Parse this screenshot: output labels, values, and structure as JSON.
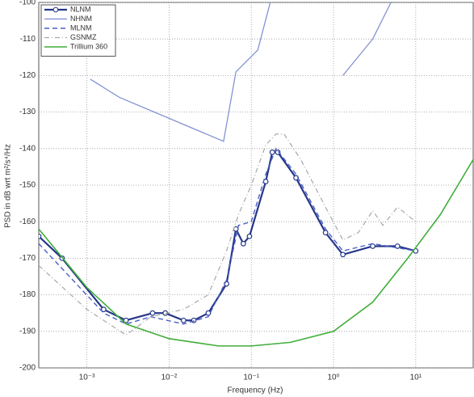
{
  "chart_data": {
    "type": "line",
    "xlabel": "Frequency (Hz)",
    "ylabel": "PSD in dB wrt m²/s⁴/Hz",
    "xscale": "log",
    "grid": true,
    "legend": "upper left",
    "xlim": [
      0.00026,
      50
    ],
    "ylim": [
      -200,
      -100
    ],
    "xticks": [
      {
        "value": 0.001,
        "label": "10⁻³"
      },
      {
        "value": 0.01,
        "label": "10⁻²"
      },
      {
        "value": 0.1,
        "label": "10⁻¹"
      },
      {
        "value": 1,
        "label": "10⁰"
      },
      {
        "value": 10,
        "label": "10¹"
      }
    ],
    "yticks": [
      -100,
      -110,
      -120,
      -130,
      -140,
      -150,
      -160,
      -170,
      -180,
      -190,
      -200
    ],
    "series": [
      {
        "name": "NLNM",
        "color": "#26378a",
        "width": 2.2,
        "marker": "o",
        "x": [
          0.00026,
          0.0005,
          0.0016,
          0.003,
          0.0063,
          0.009,
          0.015,
          0.02,
          0.03,
          0.05,
          0.065,
          0.08,
          0.095,
          0.15,
          0.18,
          0.21,
          0.35,
          0.8,
          1.3,
          3,
          6,
          10
        ],
        "values": [
          -164,
          -170,
          -184,
          -187,
          -185,
          -185,
          -187,
          -187,
          -185,
          -177,
          -162,
          -166,
          -164,
          -149,
          -141,
          -141,
          -148,
          -163,
          -169,
          -166.7,
          -166.7,
          -168
        ]
      },
      {
        "name": "NHNM",
        "color": "#7b8bd0",
        "width": 1.2,
        "x": [
          0.0011,
          0.0025,
          0.046,
          0.065,
          0.12,
          0.17,
          0.35,
          1.3,
          3,
          5
        ],
        "values": [
          -121,
          -126,
          -138,
          -119,
          -113,
          -100,
          null,
          -120,
          -110,
          -100
        ]
      },
      {
        "name": "MLNM",
        "color": "#4a60c4",
        "width": 1.4,
        "dash": "6 4",
        "x": [
          0.00026,
          0.0016,
          0.003,
          0.006,
          0.015,
          0.03,
          0.05,
          0.07,
          0.1,
          0.15,
          0.2,
          0.35,
          0.8,
          1.3,
          3,
          10
        ],
        "values": [
          -166,
          -185,
          -188,
          -186,
          -188,
          -186,
          -176,
          -161,
          -160,
          -147,
          -140,
          -147,
          -162,
          -168,
          -166,
          -168
        ]
      },
      {
        "name": "GSNMZ",
        "color": "#a8a8a8",
        "width": 1.2,
        "dash": "6 3 1 3",
        "x": [
          0.00026,
          0.001,
          0.003,
          0.006,
          0.015,
          0.03,
          0.05,
          0.07,
          0.1,
          0.15,
          0.2,
          0.25,
          0.4,
          0.8,
          1.3,
          2,
          3,
          4,
          6,
          10
        ],
        "values": [
          -172,
          -184,
          -191,
          -186,
          -184,
          -180,
          -168,
          -158,
          -150,
          -139,
          -136,
          -136,
          -143,
          -156,
          -165,
          -163,
          -157,
          -161,
          -156,
          -160
        ]
      },
      {
        "name": "Trillium 360",
        "color": "#3fae3a",
        "width": 1.6,
        "x": [
          0.00026,
          0.001,
          0.003,
          0.01,
          0.04,
          0.1,
          0.3,
          1,
          3,
          8,
          20,
          50
        ],
        "values": [
          -162,
          -178,
          -188,
          -192,
          -194,
          -194,
          -193,
          -190,
          -182,
          -170,
          -158,
          -143
        ]
      }
    ]
  }
}
